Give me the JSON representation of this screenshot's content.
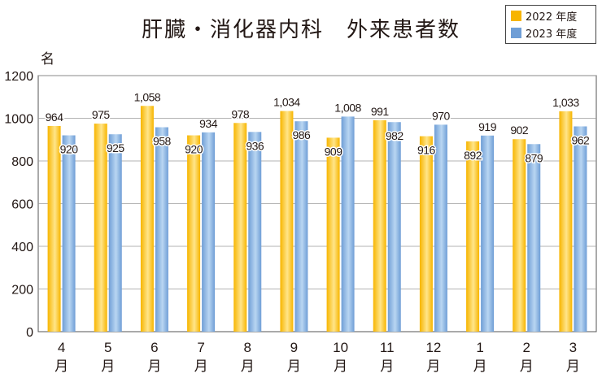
{
  "chart_data": {
    "type": "bar",
    "title": "肝臓・消化器内科　外来患者数",
    "ylabel": "名",
    "ylim": [
      0,
      1200
    ],
    "yticks": [
      0,
      200,
      400,
      600,
      800,
      1000,
      1200
    ],
    "grid": true,
    "legend_position": "top-right",
    "categories": [
      {
        "num": "4",
        "unit": "月"
      },
      {
        "num": "5",
        "unit": "月"
      },
      {
        "num": "6",
        "unit": "月"
      },
      {
        "num": "7",
        "unit": "月"
      },
      {
        "num": "8",
        "unit": "月"
      },
      {
        "num": "9",
        "unit": "月"
      },
      {
        "num": "10",
        "unit": "月"
      },
      {
        "num": "11",
        "unit": "月"
      },
      {
        "num": "12",
        "unit": "月"
      },
      {
        "num": "1",
        "unit": "月"
      },
      {
        "num": "2",
        "unit": "月"
      },
      {
        "num": "3",
        "unit": "月"
      }
    ],
    "series": [
      {
        "name": "2022 年度",
        "colors": [
          "#f7b500",
          "#ffe58a"
        ],
        "values": [
          964,
          975,
          1058,
          920,
          978,
          1034,
          909,
          991,
          916,
          892,
          902,
          1033
        ],
        "labels": [
          "964",
          "975",
          "1,058",
          "920",
          "978",
          "1,034",
          "909",
          "991",
          "916",
          "892",
          "902",
          "1,033"
        ]
      },
      {
        "name": "2023 年度",
        "colors": [
          "#6f9ed6",
          "#b9d6f2"
        ],
        "values": [
          920,
          925,
          958,
          934,
          936,
          986,
          1008,
          982,
          970,
          919,
          879,
          962
        ],
        "labels": [
          "920",
          "925",
          "958",
          "934",
          "936",
          "986",
          "1,008",
          "982",
          "970",
          "919",
          "879",
          "962"
        ]
      }
    ]
  }
}
